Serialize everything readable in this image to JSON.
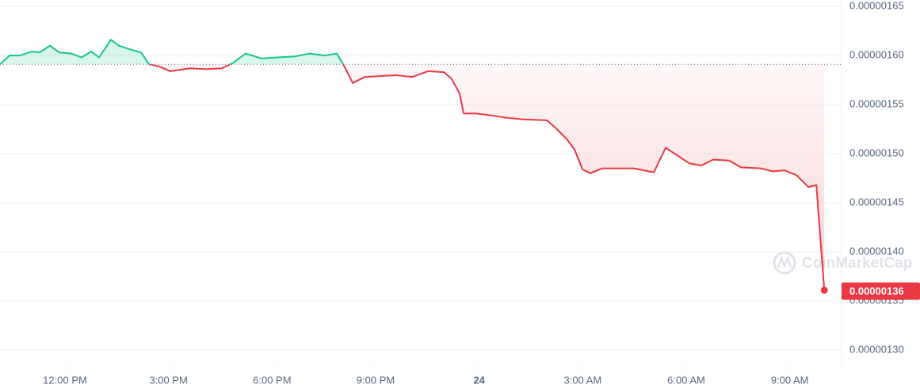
{
  "chart_data": {
    "type": "line",
    "x": [
      10.117,
      10.393,
      10.691,
      11.036,
      11.265,
      11.564,
      11.839,
      12.184,
      12.482,
      12.758,
      12.988,
      13.332,
      13.562,
      13.906,
      14.205,
      14.435,
      14.71,
      15.055,
      15.629,
      16.088,
      16.547,
      16.846,
      17.236,
      17.695,
      18.154,
      18.66,
      19.073,
      19.532,
      19.877,
      20.106,
      20.336,
      20.68,
      21.14,
      21.599,
      22.058,
      22.517,
      22.976,
      23.206,
      23.435,
      23.55,
      23.894,
      24.354,
      24.698,
      25.272,
      25.961,
      26.191,
      26.535,
      26.765,
      26.995,
      27.224,
      27.569,
      28.028,
      28.487,
      29.061,
      29.406,
      29.75,
      30.095,
      30.439,
      30.784,
      31.243,
      31.588,
      32.162,
      32.506,
      32.851,
      33.195,
      33.54,
      33.769,
      34.0
    ],
    "series": [
      {
        "name": "Price",
        "color": "#ea3943",
        "values": [
          1.591e-06,
          1.6e-06,
          1.6e-06,
          1.604e-06,
          1.603e-06,
          1.61e-06,
          1.603e-06,
          1.602e-06,
          1.598e-06,
          1.604e-06,
          1.598e-06,
          1.616e-06,
          1.61e-06,
          1.606e-06,
          1.603e-06,
          1.591e-06,
          1.589e-06,
          1.584e-06,
          1.587e-06,
          1.586e-06,
          1.587e-06,
          1.592e-06,
          1.602e-06,
          1.597e-06,
          1.598e-06,
          1.599e-06,
          1.602e-06,
          1.6e-06,
          1.602e-06,
          1.588e-06,
          1.572e-06,
          1.578e-06,
          1.579e-06,
          1.58e-06,
          1.578e-06,
          1.584e-06,
          1.583e-06,
          1.576e-06,
          1.561e-06,
          1.541e-06,
          1.541e-06,
          1.539e-06,
          1.537e-06,
          1.535e-06,
          1.534e-06,
          1.527e-06,
          1.515e-06,
          1.504e-06,
          1.484e-06,
          1.48e-06,
          1.485e-06,
          1.485e-06,
          1.485e-06,
          1.481e-06,
          1.506e-06,
          1.498e-06,
          1.49e-06,
          1.488e-06,
          1.494e-06,
          1.493e-06,
          1.486e-06,
          1.485e-06,
          1.482e-06,
          1.483e-06,
          1.478e-06,
          1.466e-06,
          1.468e-06,
          1.361e-06
        ]
      }
    ],
    "price_tag": {
      "value": 1.36e-06,
      "label": "0.00000136"
    },
    "watermark": "CoinMarketCap",
    "up_color": "#16c784",
    "xlim": [
      10.117,
      34.5
    ],
    "xticks": [
      {
        "value": 12,
        "label": "12:00 PM"
      },
      {
        "value": 15,
        "label": "3:00 PM"
      },
      {
        "value": 18,
        "label": "6:00 PM"
      },
      {
        "value": 21,
        "label": "9:00 PM"
      },
      24,
      {
        "value": 27,
        "label": "3:00 AM"
      },
      {
        "value": 30,
        "label": "6:00 AM"
      },
      {
        "value": 33,
        "label": "9:00 AM"
      }
    ],
    "ylim": [
      1.2839e-06,
      1.6565e-06
    ],
    "yticks": [
      {
        "value": 1.3e-06,
        "label": "0.00000130"
      },
      {
        "value": 1.35e-06,
        "label": "0.00000135"
      },
      {
        "value": 1.4e-06,
        "label": "0.00000140"
      },
      {
        "value": 1.45e-06,
        "label": "0.00000145"
      },
      {
        "value": 1.5e-06,
        "label": "0.00000150"
      },
      {
        "value": 1.55e-06,
        "label": "0.00000155"
      },
      {
        "value": 1.6e-06,
        "label": "0.00000160"
      },
      {
        "value": 1.65e-06,
        "label": "0.00000165"
      }
    ],
    "grid": true
  }
}
